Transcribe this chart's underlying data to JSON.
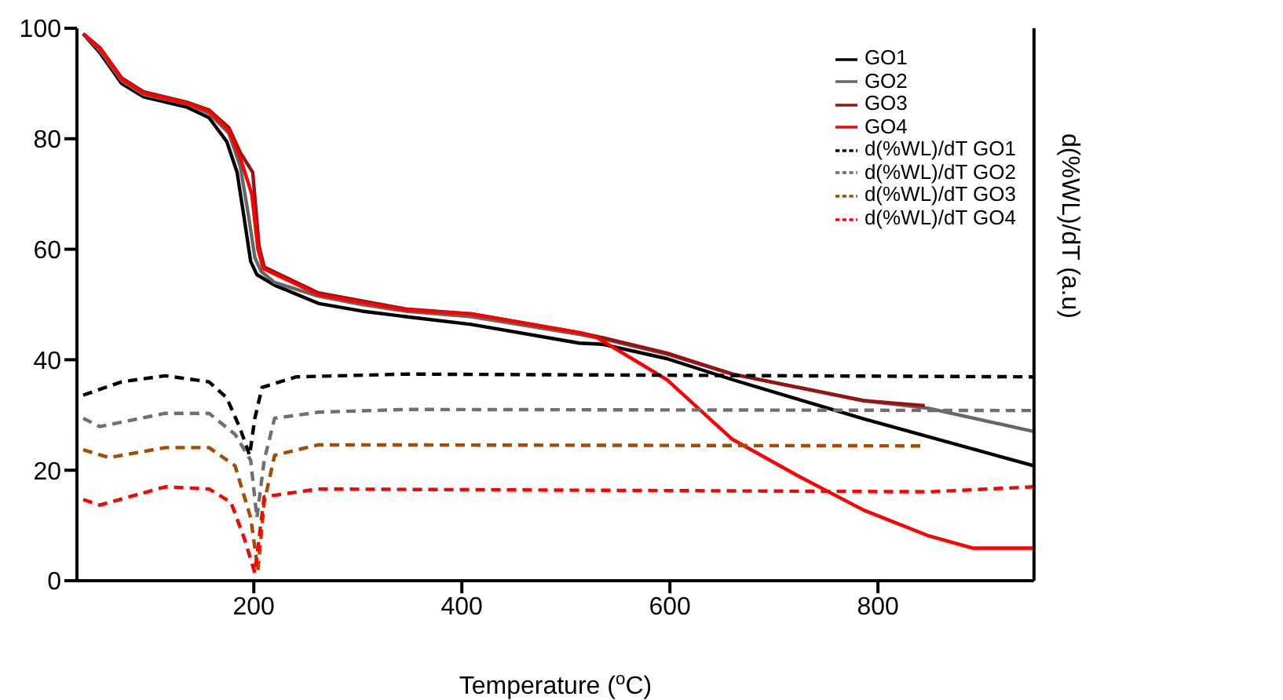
{
  "chart_data": {
    "type": "line",
    "xlabel": "Temperature ($^{o}$C)",
    "y2label": "d(%WL)/dT (a.u)",
    "xlim": [
      30,
      950
    ],
    "xticks": [
      200,
      400,
      600,
      800
    ],
    "ylim": [
      0,
      100
    ],
    "yticks": [
      0,
      20,
      40,
      60,
      80,
      100
    ],
    "grid": false,
    "legend": "top right",
    "marker": "none",
    "series": [
      {
        "name": "GO1",
        "color": "#000000",
        "line_style": "solid",
        "x": [
          36,
          52,
          73,
          94,
          136,
          157,
          174,
          184,
          191,
          197,
          203,
          220,
          262,
          304,
          346,
          409,
          513,
          535,
          597,
          660,
          786,
          950
        ],
        "values": [
          99,
          95.6,
          90,
          87.6,
          85.7,
          83.8,
          79.5,
          73.9,
          65.3,
          57.8,
          55.4,
          53.5,
          50.2,
          48.8,
          47.8,
          46.4,
          43,
          42.8,
          40.2,
          36.4,
          29.3,
          20.8
        ]
      },
      {
        "name": "GO2",
        "color": "#666666",
        "line_style": "solid",
        "x": [
          36,
          52,
          73,
          94,
          136,
          157,
          176,
          187,
          195,
          201,
          207,
          220,
          262,
          304,
          346,
          409,
          513,
          535,
          597,
          660,
          786,
          849,
          950
        ],
        "values": [
          99,
          96,
          90.5,
          88,
          86.3,
          84.6,
          81,
          75,
          66,
          58.5,
          56,
          54,
          51.5,
          50,
          48.8,
          47.8,
          44.6,
          43.8,
          41,
          37.4,
          32.6,
          31.2,
          27
        ]
      },
      {
        "name": "GO3",
        "color": "#9b1010",
        "line_style": "solid",
        "x": [
          36,
          52,
          73,
          94,
          136,
          157,
          176,
          187,
          199,
          205,
          210,
          262,
          346,
          409,
          513,
          535,
          597,
          660,
          786,
          845
        ],
        "values": [
          99,
          96.5,
          91,
          88.5,
          86.6,
          85.2,
          82,
          77.5,
          73.9,
          60.6,
          56.8,
          52.1,
          49.2,
          48.3,
          44.9,
          44,
          41.2,
          37.4,
          32.6,
          31.7
        ]
      },
      {
        "name": "GO4",
        "color": "#ff0000",
        "line_style": "solid",
        "x": [
          36,
          52,
          73,
          94,
          136,
          157,
          176,
          187,
          198,
          204,
          209,
          262,
          346,
          409,
          513,
          530,
          597,
          660,
          723,
          786,
          849,
          891,
          950
        ],
        "values": [
          99,
          96.3,
          90.8,
          88.3,
          86.4,
          85,
          81.5,
          76.5,
          70,
          60,
          56.5,
          51.8,
          49,
          48.3,
          44.9,
          44,
          36.4,
          25.6,
          19,
          12.8,
          8.1,
          5.9,
          5.9
        ]
      },
      {
        "name": "d(%WL)/dT GO1",
        "color": "#000000",
        "line_style": "dashed",
        "x": [
          36,
          73,
          115,
          157,
          174,
          187,
          196,
          201,
          208,
          241,
          346,
          950
        ],
        "values": [
          33.6,
          36,
          37.1,
          36,
          33.1,
          27.5,
          22.7,
          29.4,
          35,
          36.9,
          37.4,
          36.9
        ]
      },
      {
        "name": "d(%WL)/dT GO2",
        "color": "#707070",
        "line_style": "dashed",
        "x": [
          36,
          52,
          115,
          157,
          182,
          197,
          203,
          210,
          220,
          262,
          346,
          950
        ],
        "values": [
          29.4,
          27.9,
          30.3,
          30.3,
          26.5,
          21.8,
          11.4,
          21.8,
          29.4,
          30.5,
          31,
          30.8
        ]
      },
      {
        "name": "d(%WL)/dT GO3",
        "color": "#a64b00",
        "line_style": "dashed",
        "x": [
          36,
          61,
          115,
          157,
          182,
          197,
          204,
          210,
          220,
          262,
          845
        ],
        "values": [
          23.7,
          22.3,
          24.1,
          24.1,
          20.8,
          11.4,
          1.9,
          14.2,
          22.7,
          24.6,
          24.4
        ]
      },
      {
        "name": "d(%WL)/dT GO4",
        "color": "#ff0000",
        "line_style": "dashed",
        "x": [
          36,
          52,
          115,
          157,
          178,
          191,
          201,
          210,
          262,
          850,
          950
        ],
        "values": [
          14.7,
          13.7,
          17,
          16.6,
          14.2,
          7.6,
          1.4,
          15.2,
          16.6,
          16.1,
          17
        ]
      }
    ]
  }
}
